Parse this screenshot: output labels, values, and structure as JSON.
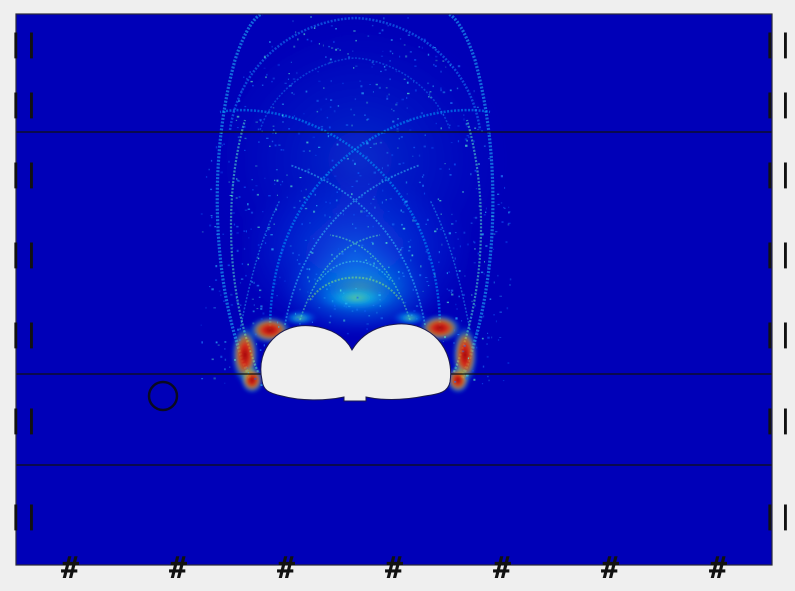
{
  "canvas": {
    "background_color": "#0000b8",
    "frame_color": "#2b2b3a",
    "page_color": "#efefef",
    "layer_line_color": "#101010",
    "marker_ring_color": "#0a0a20",
    "obstacle_fill_color": "#efefef"
  },
  "field": {
    "colormap": "jet",
    "description_symbol": "wave intensity field",
    "intensity_scale": [
      0,
      1
    ]
  },
  "layer_lines": {
    "count": 3
  },
  "side_tick_marks": {
    "left_label": "||",
    "right_label": "||",
    "count": 7
  },
  "bottom_tick_marks": {
    "label": "#",
    "count": 7
  },
  "marker": {
    "shape": "ring"
  },
  "obstacle": {
    "shape": "twin-lobed body"
  }
}
